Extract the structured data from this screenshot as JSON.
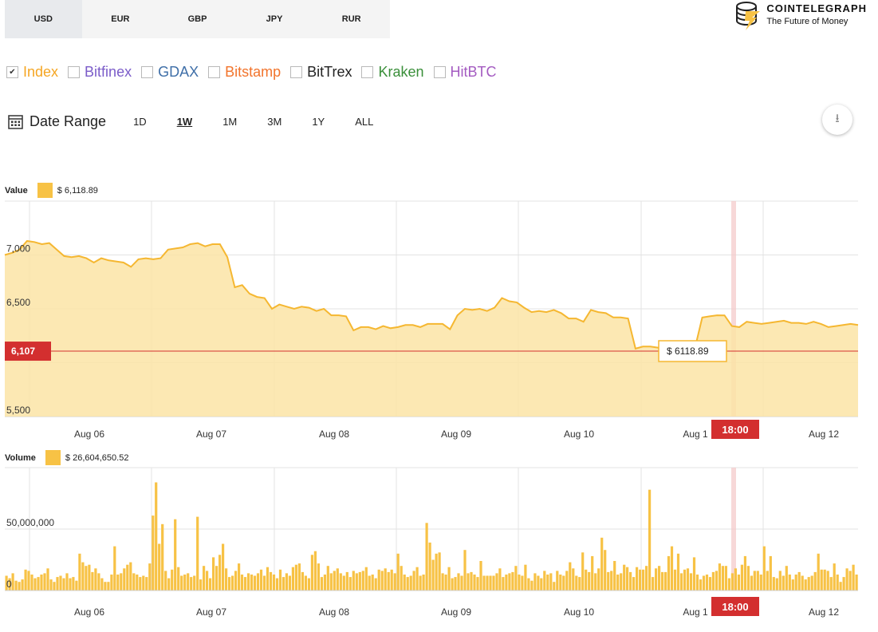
{
  "currencies": [
    "USD",
    "EUR",
    "GBP",
    "JPY",
    "RUR"
  ],
  "active_currency": "USD",
  "logo": {
    "name": "COINTELEGRAPH",
    "tagline": "The Future of Money"
  },
  "exchanges": [
    {
      "label": "Index",
      "checked": true,
      "color": "#f5a623"
    },
    {
      "label": "Bitfinex",
      "checked": false,
      "color": "#7b5cc9"
    },
    {
      "label": "GDAX",
      "checked": false,
      "color": "#3f6fa8"
    },
    {
      "label": "Bitstamp",
      "checked": false,
      "color": "#f2742c"
    },
    {
      "label": "BitTrex",
      "checked": false,
      "color": "#222222"
    },
    {
      "label": "Kraken",
      "checked": false,
      "color": "#3a8f3a"
    },
    {
      "label": "HitBTC",
      "checked": false,
      "color": "#a45bc1"
    }
  ],
  "date_range": {
    "label": "Date Range",
    "options": [
      "1D",
      "1W",
      "1M",
      "3M",
      "1Y",
      "ALL"
    ],
    "active": "1W"
  },
  "value_legend": {
    "title": "Value",
    "value": "$ 6,118.89"
  },
  "volume_legend": {
    "title": "Volume",
    "value": "$ 26,604,650.52"
  },
  "colors": {
    "fill": "#fbe4a6",
    "line": "#f5b731",
    "bar": "#f7c245",
    "marker": "#d32f2f",
    "grid": "#e3e3e3"
  },
  "chart_data": [
    {
      "type": "area",
      "title": "Value",
      "x_labels": [
        "Aug 06",
        "Aug 07",
        "Aug 08",
        "Aug 09",
        "Aug 10",
        "Aug 1",
        "Aug 12"
      ],
      "y_ticks": [
        "7,000",
        "6,500",
        "5,500"
      ],
      "y_tick_values": [
        7000,
        6500,
        5500
      ],
      "ylim": [
        5500,
        7500
      ],
      "current_price_label": "6,107",
      "current_price": 6107,
      "tooltip": "$ 6118.89",
      "crosshair_time": "18:00",
      "x_range": [
        "Aug 05 12:00",
        "Aug 12 09:00"
      ],
      "series": [
        {
          "values": [
            7000,
            7020,
            7050,
            7130,
            7120,
            7100,
            7110,
            7050,
            6990,
            6980,
            6990,
            6970,
            6930,
            6970,
            6950,
            6940,
            6930,
            6890,
            6960,
            6970,
            6960,
            6970,
            7050,
            7060,
            7070,
            7100,
            7110,
            7080,
            7100,
            7100,
            6980,
            6700,
            6720,
            6640,
            6610,
            6600,
            6500,
            6540,
            6520,
            6500,
            6520,
            6510,
            6480,
            6500,
            6440,
            6440,
            6430,
            6300,
            6330,
            6330,
            6310,
            6340,
            6320,
            6330,
            6350,
            6350,
            6330,
            6360,
            6360,
            6360,
            6310,
            6440,
            6500,
            6490,
            6500,
            6480,
            6510,
            6600,
            6570,
            6560,
            6510,
            6470,
            6480,
            6470,
            6490,
            6460,
            6410,
            6410,
            6380,
            6490,
            6470,
            6460,
            6420,
            6420,
            6410,
            6130,
            6150,
            6150,
            6140,
            6120,
            6130,
            6120,
            6110,
            6130,
            6419,
            6430,
            6440,
            6439,
            6340,
            6330,
            6380,
            6370,
            6360,
            6370,
            6380,
            6390,
            6370,
            6370,
            6360,
            6380,
            6360,
            6330,
            6340,
            6350,
            6360,
            6350
          ]
        }
      ]
    },
    {
      "type": "bar",
      "title": "Volume",
      "x_labels": [
        "Aug 06",
        "Aug 07",
        "Aug 08",
        "Aug 09",
        "Aug 10",
        "Aug 1",
        "Aug 12"
      ],
      "y_ticks": [
        "50,000,000",
        "0"
      ],
      "y_tick_values": [
        50000000,
        0
      ],
      "ylim": [
        0,
        100000000
      ],
      "crosshair_time": "18:00",
      "series": [
        {
          "values": [
            12,
            10,
            14,
            8,
            7,
            9,
            17,
            16,
            13,
            10,
            11,
            13,
            14,
            18,
            9,
            7,
            11,
            12,
            10,
            14,
            10,
            11,
            8,
            30,
            23,
            20,
            21,
            15,
            18,
            14,
            10,
            7,
            7,
            13,
            36,
            13,
            14,
            18,
            21,
            23,
            14,
            13,
            11,
            12,
            11,
            22,
            61,
            88,
            38,
            54,
            16,
            10,
            17,
            58,
            19,
            12,
            13,
            14,
            11,
            12,
            60,
            9,
            20,
            16,
            10,
            27,
            20,
            29,
            38,
            18,
            11,
            12,
            16,
            22,
            13,
            11,
            14,
            13,
            12,
            14,
            17,
            12,
            19,
            15,
            13,
            10,
            17,
            11,
            14,
            12,
            19,
            21,
            22,
            15,
            12,
            10,
            29,
            32,
            22,
            11,
            13,
            20,
            14,
            16,
            18,
            14,
            12,
            15,
            11,
            16,
            14,
            15,
            16,
            19,
            12,
            13,
            10,
            17,
            16,
            18,
            15,
            17,
            14,
            30,
            20,
            13,
            11,
            12,
            16,
            19,
            12,
            13,
            55,
            39,
            25,
            30,
            31,
            14,
            13,
            19,
            10,
            11,
            14,
            12,
            33,
            14,
            15,
            13,
            11,
            24,
            12,
            12,
            12,
            12,
            14,
            18,
            11,
            13,
            14,
            15,
            20,
            13,
            12,
            21,
            10,
            8,
            14,
            12,
            10,
            16,
            13,
            14,
            7,
            16,
            13,
            12,
            16,
            23,
            18,
            12,
            11,
            31,
            17,
            15,
            28,
            14,
            18,
            43,
            33,
            15,
            16,
            24,
            13,
            14,
            21,
            19,
            15,
            11,
            19,
            17,
            17,
            20,
            82,
            11,
            18,
            20,
            15,
            15,
            28,
            36,
            17,
            30,
            14,
            17,
            18,
            14,
            27,
            13,
            9,
            12,
            13,
            11,
            15,
            16,
            22,
            20,
            20,
            10,
            14,
            18,
            13,
            21,
            28,
            20,
            12,
            16,
            16,
            13,
            36,
            16,
            28,
            11,
            10,
            16,
            12,
            20,
            13,
            9,
            13,
            15,
            12,
            9,
            11,
            12,
            15,
            30,
            17,
            17,
            16,
            11,
            22,
            13,
            7,
            11,
            18,
            16,
            21,
            13
          ]
        }
      ]
    }
  ]
}
